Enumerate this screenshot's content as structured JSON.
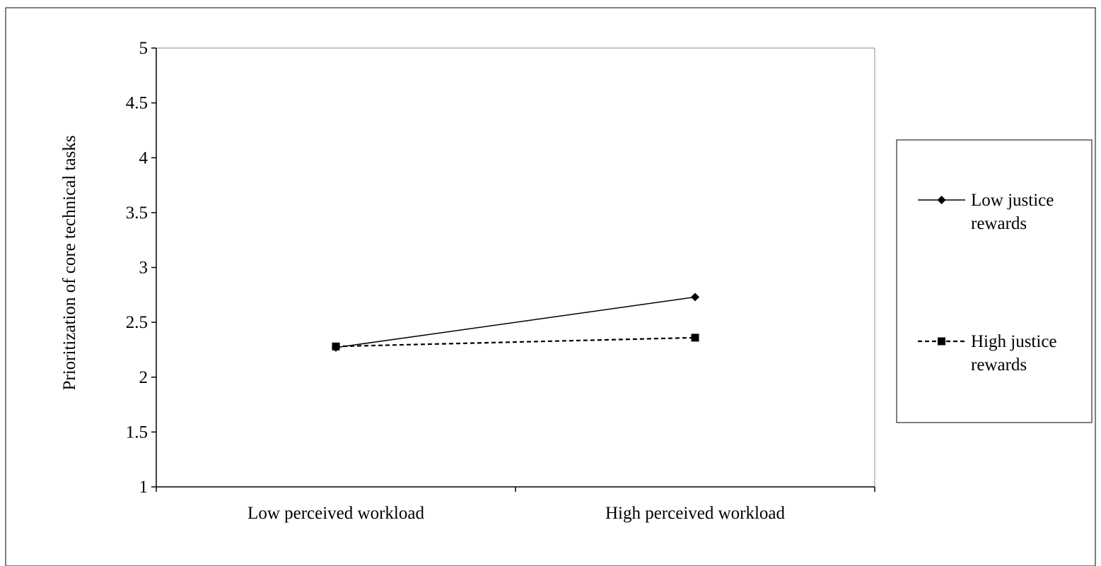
{
  "chart_data": {
    "type": "line",
    "title": "",
    "xlabel": "",
    "ylabel": "Prioritization of core technical tasks",
    "categories": [
      "Low perceived workload",
      "High perceived workload"
    ],
    "ylim": [
      1,
      5
    ],
    "yticks": [
      "1",
      "1.5",
      "2",
      "2.5",
      "3",
      "3.5",
      "4",
      "4.5",
      "5"
    ],
    "grid": false,
    "legend_position": "right",
    "series": [
      {
        "name": "Low justice rewards",
        "name_lines": [
          "Low justice",
          "rewards"
        ],
        "values": [
          2.27,
          2.73
        ],
        "marker": "diamond",
        "line_style": "solid",
        "color": "#000000"
      },
      {
        "name": "High justice rewards",
        "name_lines": [
          "High justice",
          "rewards"
        ],
        "values": [
          2.28,
          2.36
        ],
        "marker": "square",
        "line_style": "dashed",
        "color": "#000000"
      }
    ]
  }
}
